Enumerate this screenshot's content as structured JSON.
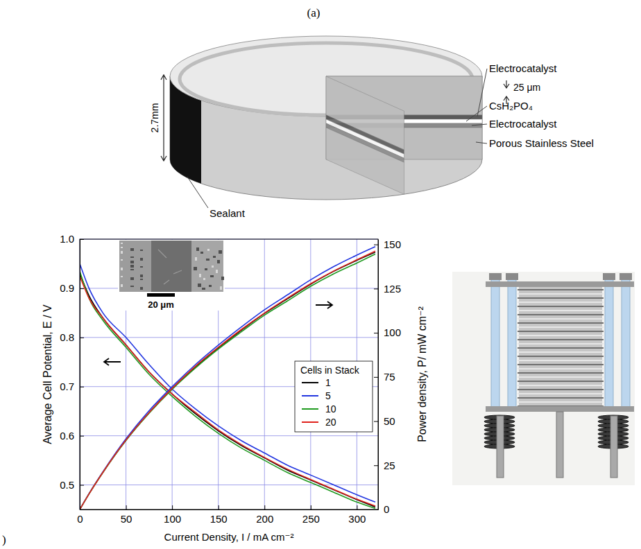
{
  "panel_labels": [
    "(a)",
    ")"
  ],
  "diagram": {
    "height_label": "2.7mm",
    "thickness_label": "25 μm",
    "labels": {
      "electrocatalyst_top": "Electrocatalyst",
      "electrolyte": "CsH₂PO₄",
      "electrocatalyst_bottom": "Electrocatalyst",
      "support": "Porous Stainless Steel",
      "sealant": "Sealant"
    }
  },
  "inset": {
    "scale_bar": "20 μm"
  },
  "chart_data": {
    "type": "line",
    "x_label": "Current Density, I / mA cm⁻²",
    "y_label": "Average Cell Potential, E / V",
    "y2_label": "Power density, P/ mW cm⁻²",
    "legend_title": "Cells in Stack",
    "legend": "lower right",
    "grid": true,
    "x": [
      0,
      10,
      25,
      50,
      75,
      100,
      125,
      150,
      175,
      200,
      225,
      250,
      275,
      300,
      320
    ],
    "xlim": [
      0,
      323
    ],
    "xticks": [
      0,
      50,
      100,
      150,
      200,
      250,
      300
    ],
    "ylim": [
      0.45,
      1.0
    ],
    "yticks": [
      0.5,
      0.6,
      0.7,
      0.8,
      0.9,
      {
        "value": 1.0,
        "label": "1.0"
      }
    ],
    "y2lim": [
      0,
      153
    ],
    "y2ticks": [
      0,
      25,
      50,
      75,
      100,
      125,
      150
    ],
    "series": [
      {
        "name": "1",
        "color": "#000000",
        "values": [
          0.93,
          0.885,
          0.84,
          0.785,
          0.73,
          0.685,
          0.645,
          0.61,
          0.58,
          0.555,
          0.53,
          0.51,
          0.49,
          0.47,
          0.455
        ]
      },
      {
        "name": "5",
        "color": "#2236e0",
        "values": [
          0.95,
          0.9,
          0.85,
          0.8,
          0.745,
          0.695,
          0.655,
          0.62,
          0.59,
          0.565,
          0.54,
          0.52,
          0.5,
          0.48,
          0.465
        ]
      },
      {
        "name": "10",
        "color": "#1f9a1f",
        "values": [
          0.935,
          0.88,
          0.835,
          0.78,
          0.725,
          0.68,
          0.64,
          0.605,
          0.575,
          0.55,
          0.525,
          0.505,
          0.485,
          0.465,
          0.452
        ]
      },
      {
        "name": "20",
        "color": "#e0221c",
        "values": [
          0.925,
          0.88,
          0.84,
          0.785,
          0.73,
          0.685,
          0.648,
          0.612,
          0.582,
          0.556,
          0.532,
          0.511,
          0.491,
          0.471,
          0.457
        ]
      },
      {
        "name": "1",
        "color": "#000000",
        "axis": "y2",
        "values": [
          0,
          8.85,
          21,
          39.25,
          54.75,
          68.5,
          80.6,
          91.5,
          101.5,
          111,
          119.3,
          127.5,
          134.8,
          141,
          145.6
        ]
      },
      {
        "name": "5",
        "color": "#2236e0",
        "axis": "y2",
        "values": [
          0,
          9,
          21.3,
          40,
          55.9,
          69.5,
          81.9,
          93,
          103.3,
          113,
          121.5,
          130,
          137.5,
          144,
          148.8
        ]
      },
      {
        "name": "10",
        "color": "#1f9a1f",
        "axis": "y2",
        "values": [
          0,
          8.8,
          20.9,
          39,
          54.4,
          68,
          80,
          90.8,
          100.6,
          110,
          118.1,
          126.3,
          133.4,
          139.5,
          144.6
        ]
      },
      {
        "name": "20",
        "color": "#e0221c",
        "axis": "y2",
        "values": [
          0,
          8.8,
          21,
          39.3,
          54.8,
          68.5,
          81,
          91.8,
          101.9,
          111.2,
          119.7,
          127.8,
          135,
          141.3,
          146.2
        ]
      }
    ]
  }
}
